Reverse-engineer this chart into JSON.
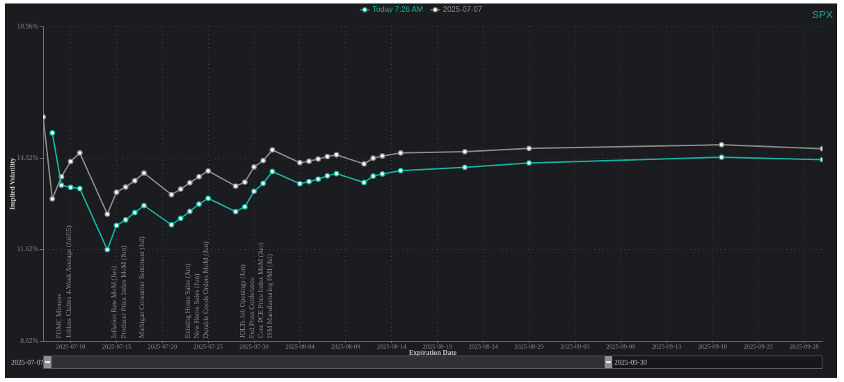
{
  "chart_data": {
    "type": "line",
    "title": "SPX",
    "xlabel": "Expiration Date",
    "ylabel": "Implied Volatility",
    "x": [
      "2025-07-07",
      "2025-07-08",
      "2025-07-09",
      "2025-07-10",
      "2025-07-11",
      "2025-07-14",
      "2025-07-15",
      "2025-07-16",
      "2025-07-17",
      "2025-07-18",
      "2025-07-21",
      "2025-07-22",
      "2025-07-23",
      "2025-07-24",
      "2025-07-25",
      "2025-07-28",
      "2025-07-29",
      "2025-07-30",
      "2025-07-31",
      "2025-08-01",
      "2025-08-04",
      "2025-08-05",
      "2025-08-06",
      "2025-08-07",
      "2025-08-08",
      "2025-08-11",
      "2025-08-12",
      "2025-08-13",
      "2025-08-15",
      "2025-08-22",
      "2025-08-29",
      "2025-09-19",
      "2025-09-30"
    ],
    "series": [
      {
        "name": "Today 7:26 AM",
        "color": "#16b5a3",
        "values": [
          null,
          15.46,
          13.74,
          13.67,
          13.63,
          11.62,
          12.42,
          12.6,
          12.84,
          13.07,
          12.44,
          12.65,
          12.88,
          13.12,
          13.31,
          12.87,
          13.03,
          13.54,
          13.8,
          14.19,
          13.79,
          13.86,
          13.94,
          14.05,
          14.12,
          13.83,
          14.04,
          14.11,
          14.22,
          14.33,
          14.47,
          14.66,
          14.58
        ]
      },
      {
        "name": "2025-07-07",
        "color": "#8c8c8c",
        "values": [
          15.98,
          13.29,
          14.02,
          14.52,
          14.8,
          12.79,
          13.51,
          13.68,
          13.89,
          14.14,
          13.43,
          13.61,
          13.82,
          14.02,
          14.21,
          13.71,
          13.84,
          14.34,
          14.55,
          14.9,
          14.48,
          14.53,
          14.6,
          14.68,
          14.74,
          14.44,
          14.63,
          14.7,
          14.8,
          14.84,
          14.95,
          15.07,
          14.94
        ]
      }
    ],
    "xlim": [
      "2025-07-07",
      "2025-09-30"
    ],
    "xticks": [
      "2025-07-10",
      "2025-07-15",
      "2025-07-20",
      "2025-07-25",
      "2025-07-30",
      "2025-08-04",
      "2025-08-09",
      "2025-08-14",
      "2025-08-19",
      "2025-08-24",
      "2025-08-29",
      "2025-09-03",
      "2025-09-08",
      "2025-09-13",
      "2025-09-18",
      "2025-09-23",
      "2025-09-28"
    ],
    "ylim": [
      8.62,
      18.96
    ],
    "yticks": [
      {
        "value": 8.62,
        "label": "8.62%"
      },
      {
        "value": 11.62,
        "label": "11.62%"
      },
      {
        "value": 14.62,
        "label": "14.62%"
      },
      {
        "value": 18.96,
        "label": "18.96%"
      }
    ],
    "annotations": [
      "FOMC Minutes",
      "Jobless Claims 4-Week Average (Jul/05)",
      "Inflation Rate MoM (Jun)",
      "Producer Price Index MoM (Jun)",
      "Michigan Consumer Sentiment (Jul)",
      "Existing Home Sales (Jun)",
      "New Home Sales (Jun)",
      "Durable Goods Orders MoM (Jun)",
      "JOLTs Job Openings (Jun)",
      "Fed Press Conference",
      "Core PCE Price Index MoM (Jun)",
      "ISM Manufacturing PMI (Jul)",
      "2025-07-07",
      "2025-09-30"
    ],
    "grid": true,
    "legend": "top",
    "marker": "circle",
    "line_style": "solid"
  }
}
